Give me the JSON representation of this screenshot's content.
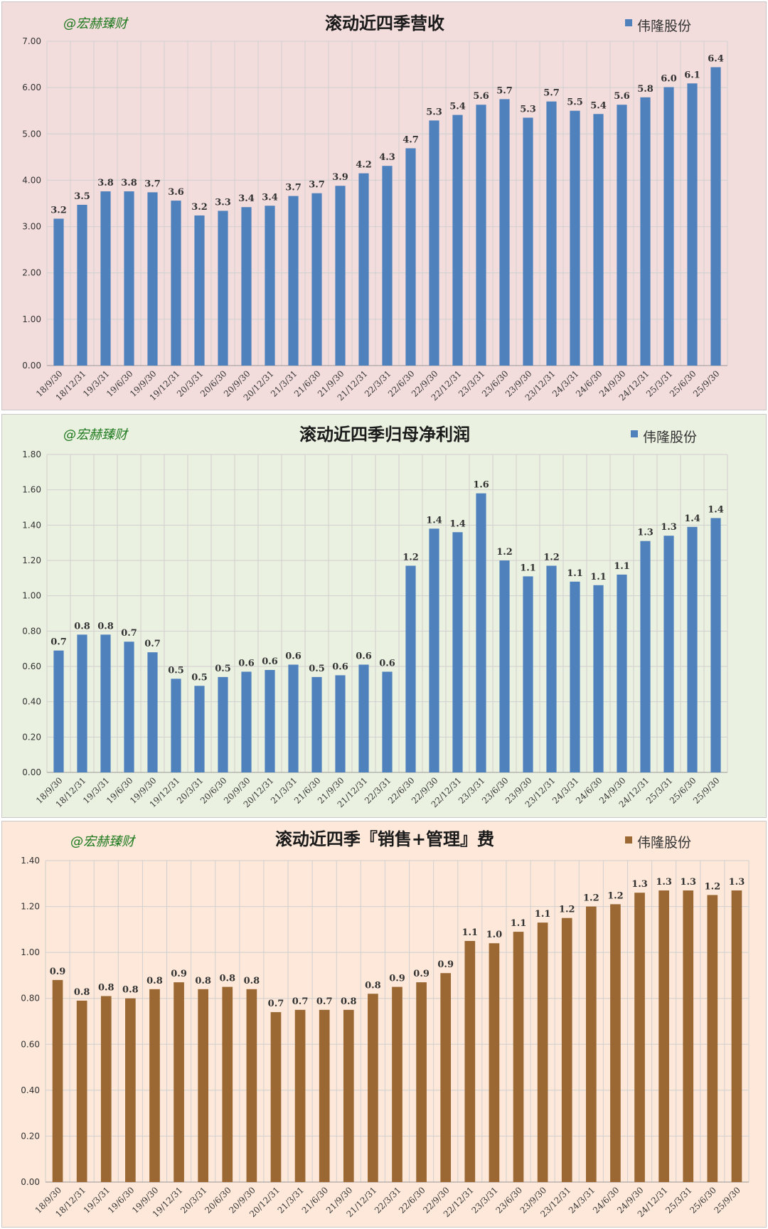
{
  "watermark": "@宏赫臻财",
  "chart_data": [
    {
      "type": "bar",
      "title": "滚动近四季营收",
      "legend": "伟隆股份",
      "color": "#4f81bd",
      "ylim": [
        0,
        7
      ],
      "yticks": [
        "0.00",
        "1.00",
        "2.00",
        "3.00",
        "4.00",
        "5.00",
        "6.00",
        "7.00"
      ],
      "categories": [
        "18/9/30",
        "18/12/31",
        "19/3/31",
        "19/6/30",
        "19/9/30",
        "19/12/31",
        "20/3/31",
        "20/6/30",
        "20/9/30",
        "20/12/31",
        "21/3/31",
        "21/6/30",
        "21/9/30",
        "21/12/31",
        "22/3/31",
        "22/6/30",
        "22/9/30",
        "22/12/31",
        "23/3/31",
        "23/6/30",
        "23/9/30",
        "23/12/31",
        "24/3/31",
        "24/6/30",
        "24/9/30",
        "24/12/31",
        "25/3/31",
        "25/6/30",
        "25/9/30"
      ],
      "values": [
        3.17,
        3.47,
        3.76,
        3.76,
        3.74,
        3.56,
        3.24,
        3.34,
        3.42,
        3.45,
        3.66,
        3.72,
        3.88,
        4.15,
        4.31,
        4.69,
        5.29,
        5.41,
        5.63,
        5.75,
        5.35,
        5.7,
        5.5,
        5.43,
        5.63,
        5.79,
        6.01,
        6.09,
        6.44
      ],
      "labels": [
        "3.2",
        "3.5",
        "3.8",
        "3.8",
        "3.7",
        "3.6",
        "3.2",
        "3.3",
        "3.4",
        "3.4",
        "3.7",
        "3.7",
        "3.9",
        "4.2",
        "4.3",
        "4.7",
        "5.3",
        "5.4",
        "5.6",
        "5.7",
        "5.3",
        "5.7",
        "5.5",
        "5.4",
        "5.6",
        "5.8",
        "6.0",
        "6.1",
        "6.4"
      ]
    },
    {
      "type": "bar",
      "title": "滚动近四季归母净利润",
      "legend": "伟隆股份",
      "color": "#4f81bd",
      "ylim": [
        0,
        1.8
      ],
      "yticks": [
        "0.00",
        "0.20",
        "0.40",
        "0.60",
        "0.80",
        "1.00",
        "1.20",
        "1.40",
        "1.60",
        "1.80"
      ],
      "categories": [
        "18/9/30",
        "18/12/31",
        "19/3/31",
        "19/6/30",
        "19/9/30",
        "19/12/31",
        "20/3/31",
        "20/6/30",
        "20/9/30",
        "20/12/31",
        "21/3/31",
        "21/6/30",
        "21/9/30",
        "21/12/31",
        "22/3/31",
        "22/6/30",
        "22/9/30",
        "22/12/31",
        "23/3/31",
        "23/6/30",
        "23/9/30",
        "23/12/31",
        "24/3/31",
        "24/6/30",
        "24/9/30",
        "24/12/31",
        "25/3/31",
        "25/6/30",
        "25/9/30"
      ],
      "values": [
        0.69,
        0.78,
        0.78,
        0.74,
        0.68,
        0.53,
        0.49,
        0.54,
        0.57,
        0.58,
        0.61,
        0.54,
        0.55,
        0.61,
        0.57,
        1.17,
        1.38,
        1.36,
        1.58,
        1.2,
        1.11,
        1.17,
        1.08,
        1.06,
        1.12,
        1.31,
        1.34,
        1.39,
        1.44
      ],
      "labels": [
        "0.7",
        "0.8",
        "0.8",
        "0.7",
        "0.7",
        "0.5",
        "0.5",
        "0.5",
        "0.6",
        "0.6",
        "0.6",
        "0.5",
        "0.6",
        "0.6",
        "0.6",
        "1.2",
        "1.4",
        "1.4",
        "1.6",
        "1.2",
        "1.1",
        "1.2",
        "1.1",
        "1.1",
        "1.1",
        "1.3",
        "1.3",
        "1.4",
        "1.4"
      ]
    },
    {
      "type": "bar",
      "title": "滚动近四季『销售+管理』费",
      "legend": "伟隆股份",
      "color": "#9b6733",
      "ylim": [
        0,
        1.4
      ],
      "yticks": [
        "0.00",
        "0.20",
        "0.40",
        "0.60",
        "0.80",
        "1.00",
        "1.20",
        "1.40"
      ],
      "categories": [
        "18/9/30",
        "18/12/31",
        "19/3/31",
        "19/6/30",
        "19/9/30",
        "19/12/31",
        "20/3/31",
        "20/6/30",
        "20/9/30",
        "20/12/31",
        "21/3/31",
        "21/6/30",
        "21/9/30",
        "21/12/31",
        "22/3/31",
        "22/6/30",
        "22/9/30",
        "22/12/31",
        "23/3/31",
        "23/6/30",
        "23/9/30",
        "23/12/31",
        "24/3/31",
        "24/6/30",
        "24/9/30",
        "24/12/31",
        "25/3/31",
        "25/6/30",
        "25/9/30"
      ],
      "values": [
        0.88,
        0.79,
        0.81,
        0.8,
        0.84,
        0.87,
        0.84,
        0.85,
        0.84,
        0.74,
        0.75,
        0.75,
        0.75,
        0.82,
        0.85,
        0.87,
        0.91,
        1.05,
        1.04,
        1.09,
        1.13,
        1.15,
        1.2,
        1.21,
        1.26,
        1.27,
        1.27,
        1.25,
        1.27
      ],
      "labels": [
        "0.9",
        "0.8",
        "0.8",
        "0.8",
        "0.8",
        "0.9",
        "0.8",
        "0.8",
        "0.8",
        "0.7",
        "0.7",
        "0.7",
        "0.8",
        "0.8",
        "0.9",
        "0.9",
        "0.9",
        "1.1",
        "1.0",
        "1.1",
        "1.1",
        "1.2",
        "1.2",
        "1.2",
        "1.3",
        "1.3",
        "1.3",
        "1.2",
        "1.3"
      ]
    }
  ]
}
